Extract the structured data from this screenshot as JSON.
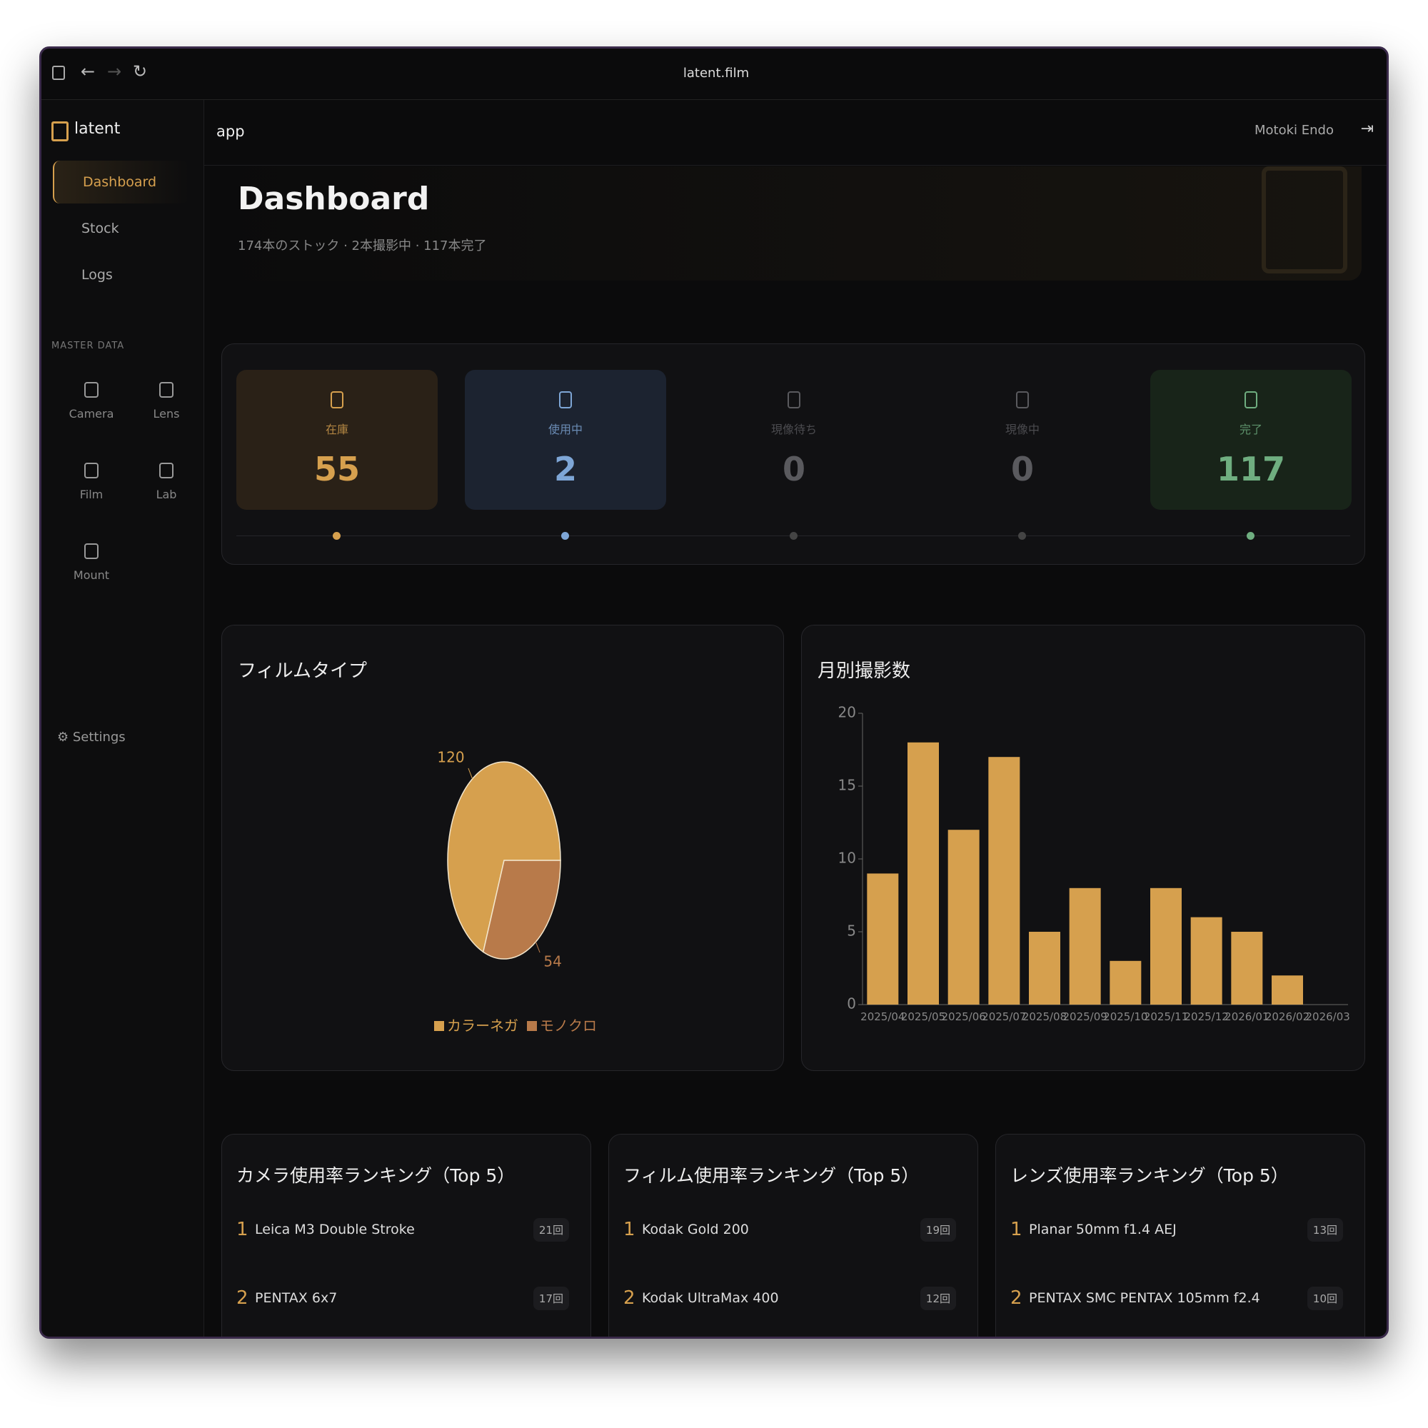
{
  "browser": {
    "url": "latent.film"
  },
  "sidebar": {
    "brand": "latent",
    "nav": [
      "Dashboard",
      "Stock",
      "Logs"
    ],
    "section": "MASTER DATA",
    "master": [
      "Camera",
      "Lens",
      "Film",
      "Lab",
      "Mount"
    ],
    "settings": "Settings"
  },
  "header": {
    "breadcrumb": "app",
    "user": "Motoki Endo"
  },
  "dashboard": {
    "title": "Dashboard",
    "subtitle": "174本のストック · 2本撮影中 · 117本完了"
  },
  "stats": [
    {
      "label": "在庫",
      "value": 55,
      "color": "#d6a04e",
      "background": "#2a2117"
    },
    {
      "label": "使用中",
      "value": 2,
      "color": "#7ea6d6",
      "background": "#1c2330"
    },
    {
      "label": "現像待ち",
      "value": 0,
      "color": "#5a5a5e",
      "background": "transparent"
    },
    {
      "label": "現像中",
      "value": 0,
      "color": "#5a5a5e",
      "background": "transparent"
    },
    {
      "label": "完了",
      "value": 117,
      "color": "#6fae80",
      "background": "#182419"
    }
  ],
  "chart_data": [
    {
      "type": "pie",
      "title": "フィルムタイプ",
      "categories": [
        "カラーネガ",
        "モノクロ"
      ],
      "values": [
        120,
        54
      ],
      "colors": [
        "#d6a04e",
        "#b87a4a"
      ]
    },
    {
      "type": "bar",
      "title": "月別撮影数",
      "categories": [
        "2025/04",
        "2025/05",
        "2025/06",
        "2025/07",
        "2025/08",
        "2025/09",
        "2025/10",
        "2025/11",
        "2025/12",
        "2026/01",
        "2026/02",
        "2026/03"
      ],
      "values": [
        9,
        18,
        12,
        17,
        5,
        8,
        3,
        8,
        6,
        5,
        2,
        0
      ],
      "color": "#d6a04e",
      "ylim": [
        0,
        20
      ],
      "yticks": [
        0,
        5,
        10,
        15,
        20
      ]
    }
  ],
  "rankings": [
    {
      "title": "カメラ使用率ランキング（Top 5）",
      "items": [
        {
          "rank": 1,
          "name": "Leica M3 Double Stroke",
          "count": "21回"
        },
        {
          "rank": 2,
          "name": "PENTAX 6x7",
          "count": "17回"
        }
      ]
    },
    {
      "title": "フィルム使用率ランキング（Top 5）",
      "items": [
        {
          "rank": 1,
          "name": "Kodak Gold 200",
          "count": "19回"
        },
        {
          "rank": 2,
          "name": "Kodak UltraMax 400",
          "count": "12回"
        }
      ]
    },
    {
      "title": "レンズ使用率ランキング（Top 5）",
      "items": [
        {
          "rank": 1,
          "name": "Planar 50mm f1.4 AEJ",
          "count": "13回"
        },
        {
          "rank": 2,
          "name": "PENTAX SMC PENTAX 105mm f2.4",
          "count": "10回"
        }
      ]
    }
  ]
}
